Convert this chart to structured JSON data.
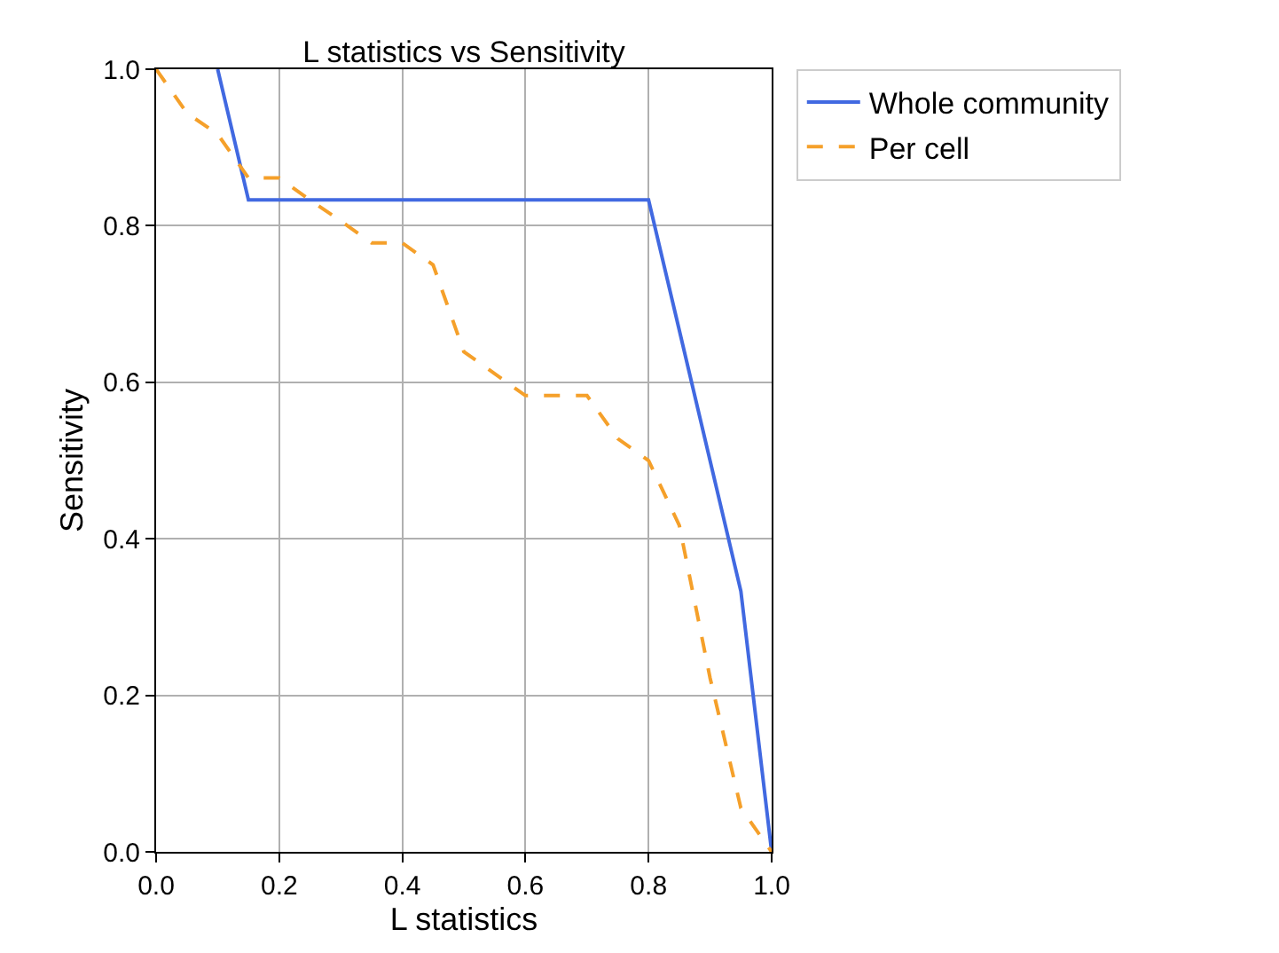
{
  "chart_data": {
    "type": "line",
    "title": "L statistics vs Sensitivity",
    "xlabel": "L statistics",
    "ylabel": "Sensitivity",
    "xlim": [
      0,
      1
    ],
    "ylim": [
      0,
      1
    ],
    "xticks": [
      {
        "value": 0,
        "label": "0.0"
      },
      0.2,
      0.4,
      0.6,
      0.8,
      {
        "value": 1,
        "label": "1.0"
      }
    ],
    "yticks": [
      {
        "value": 0,
        "label": "0.0"
      },
      0.2,
      0.4,
      0.6,
      0.8,
      {
        "value": 1,
        "label": "1.0"
      }
    ],
    "grid": true,
    "legend": "top right",
    "series": [
      {
        "name": "Whole community",
        "color": "#4169e1",
        "line_style": "solid",
        "x": [
          0.1,
          0.15,
          0.8,
          0.95,
          1.0
        ],
        "values": [
          1.0,
          0.833,
          0.833,
          0.333,
          0.0
        ]
      },
      {
        "name": "Per cell",
        "color": "#f5a02a",
        "line_style": "dashed",
        "x": [
          0,
          0.05,
          0.1,
          0.15,
          0.2,
          0.25,
          0.3,
          0.35,
          0.4,
          0.45,
          0.5,
          0.55,
          0.6,
          0.65,
          0.7,
          0.75,
          0.8,
          0.85,
          0.9,
          0.95,
          1.0
        ],
        "values": [
          1.0,
          0.944,
          0.917,
          0.861,
          0.861,
          0.833,
          0.806,
          0.778,
          0.778,
          0.75,
          0.639,
          0.611,
          0.583,
          0.583,
          0.583,
          0.528,
          0.5,
          0.417,
          0.222,
          0.056,
          0.0
        ]
      }
    ]
  }
}
